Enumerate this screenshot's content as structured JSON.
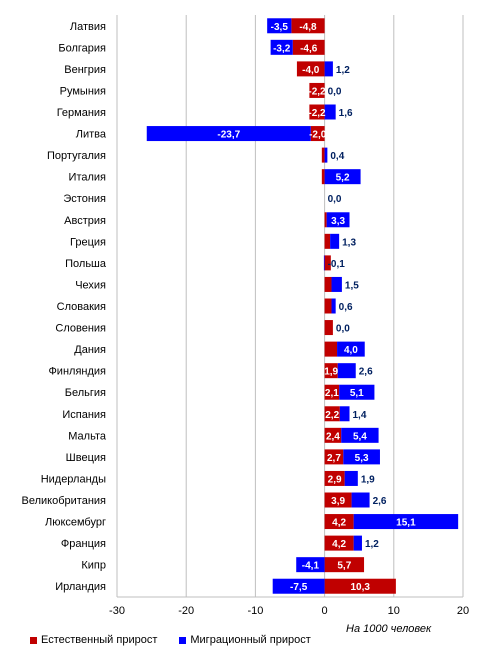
{
  "chart_data": {
    "type": "bar",
    "orientation": "horizontal",
    "stacked": true,
    "categories": [
      "Латвия",
      "Болгария",
      "Венгрия",
      "Румыния",
      "Германия",
      "Литва",
      "Португалия",
      "Италия",
      "Эстония",
      "Австрия",
      "Греция",
      "Польша",
      "Чехия",
      "Словакия",
      "Словения",
      "Дания",
      "Финляндия",
      "Бельгия",
      "Испания",
      "Мальта",
      "Швеция",
      "Нидерланды",
      "Великобритания",
      "Люксембург",
      "Франция",
      "Кипр",
      "Ирландия"
    ],
    "series": [
      {
        "name": "Естественный прирост",
        "color": "#c00000",
        "values": [
          -4.8,
          -4.6,
          -4.0,
          -2.2,
          -2.2,
          -2.0,
          -0.4,
          -0.4,
          0.0,
          0.3,
          0.8,
          0.9,
          1.0,
          1.0,
          1.2,
          1.8,
          1.9,
          2.1,
          2.2,
          2.4,
          2.7,
          2.9,
          3.9,
          4.2,
          4.2,
          5.7,
          10.3
        ],
        "labels": [
          "-4,8",
          "-4,6",
          "-4,0",
          "-2,2",
          "-2,2",
          "-2,0",
          "",
          "",
          "",
          "",
          "",
          "",
          "",
          "",
          "",
          "",
          "1,9",
          "2,1",
          "2,2",
          "2,4",
          "2,7",
          "2,9",
          "3,9",
          "4,2",
          "4,2",
          "5,7",
          "10,3"
        ]
      },
      {
        "name": "Миграционный прирост",
        "color": "#0000ff",
        "values": [
          -3.5,
          -3.2,
          1.2,
          0.0,
          1.6,
          -23.7,
          0.4,
          5.2,
          0.0,
          3.3,
          1.3,
          -0.1,
          1.5,
          0.6,
          0.0,
          4.0,
          2.6,
          5.1,
          1.4,
          5.4,
          5.3,
          1.9,
          2.6,
          15.1,
          1.2,
          -4.1,
          -7.5
        ],
        "labels": [
          "-3,5",
          "-3,2",
          "1,2",
          "0,0",
          "1,6",
          "-23,7",
          "0,4",
          "5,2",
          "0,0",
          "3,3",
          "1,3",
          "-0,1",
          "1,5",
          "0,6",
          "0,0",
          "4,0",
          "2,6",
          "5,1",
          "1,4",
          "5,4",
          "5,3",
          "1,9",
          "2,6",
          "15,1",
          "1,2",
          "-4,1",
          "-7,5"
        ]
      }
    ],
    "xlim": [
      -30,
      20
    ],
    "xticks": [
      "-30",
      "-20",
      "-10",
      "0",
      "10",
      "20"
    ],
    "xlabel": "На 1000 человек",
    "grid": true,
    "legend_position": "bottom"
  },
  "legend": {
    "natural": "Естественный прирост",
    "migration": "Миграционный прирост"
  },
  "unit": "На 1000 человек"
}
